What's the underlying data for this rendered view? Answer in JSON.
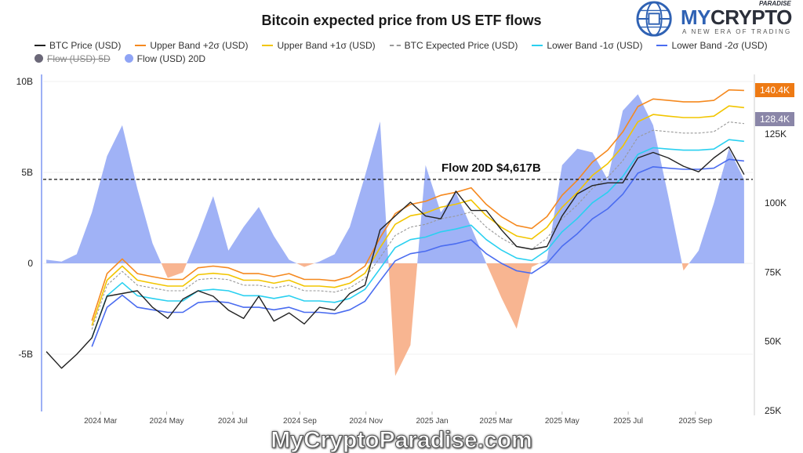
{
  "title": "Bitcoin expected price from US ETF flows",
  "logo": {
    "brand_my": "MY",
    "brand_crypto": "CRYPTO",
    "paradise": "PARADISE",
    "tagline": "A NEW ERA OF TRADING"
  },
  "watermark": "MyCryptoParadise.com",
  "legend": {
    "items": [
      {
        "label": "BTC Price (USD)",
        "color": "#222222",
        "style": "line"
      },
      {
        "label": "Upper Band +2σ (USD)",
        "color": "#f5891f",
        "style": "line"
      },
      {
        "label": "Upper Band +1σ (USD)",
        "color": "#f2c500",
        "style": "line"
      },
      {
        "label": "BTC Expected Price (USD)",
        "color": "#999999",
        "style": "dash"
      },
      {
        "label": "Lower Band -1σ (USD)",
        "color": "#2ad0f0",
        "style": "line"
      },
      {
        "label": "Lower Band -2σ (USD)",
        "color": "#4a6cf0",
        "style": "line"
      },
      {
        "label": "Flow (USD) 5D",
        "color": "#6b6878",
        "style": "dot",
        "hidden": true
      },
      {
        "label": "Flow (USD) 20D",
        "color": "#8fa4f5",
        "style": "dot"
      }
    ]
  },
  "chart_data": {
    "type": "line",
    "title": "Bitcoin expected price from US ETF flows",
    "x": [
      "2024-01-11",
      "2024-01-25",
      "2024-02-08",
      "2024-02-22",
      "2024-03-07",
      "2024-03-21",
      "2024-04-04",
      "2024-04-18",
      "2024-05-02",
      "2024-05-16",
      "2024-05-30",
      "2024-06-13",
      "2024-06-27",
      "2024-07-11",
      "2024-07-25",
      "2024-08-08",
      "2024-08-22",
      "2024-09-05",
      "2024-09-19",
      "2024-10-03",
      "2024-10-17",
      "2024-10-31",
      "2024-11-14",
      "2024-11-28",
      "2024-12-12",
      "2024-12-26",
      "2025-01-09",
      "2025-01-23",
      "2025-02-06",
      "2025-02-20",
      "2025-03-06",
      "2025-03-20",
      "2025-04-03",
      "2025-04-17",
      "2025-05-01",
      "2025-05-15",
      "2025-05-29",
      "2025-06-12",
      "2025-06-26",
      "2025-07-10",
      "2025-07-24",
      "2025-08-07",
      "2025-08-21",
      "2025-09-04",
      "2025-09-18",
      "2025-10-02",
      "2025-10-16"
    ],
    "x_ticks": [
      {
        "date": "2024-03-01",
        "label": "2024 Mar"
      },
      {
        "date": "2024-05-01",
        "label": "2024 May"
      },
      {
        "date": "2024-07-01",
        "label": "2024 Jul"
      },
      {
        "date": "2024-09-01",
        "label": "2024 Sep"
      },
      {
        "date": "2024-11-01",
        "label": "2024 Nov"
      },
      {
        "date": "2025-01-01",
        "label": "2025 Jan"
      },
      {
        "date": "2025-03-01",
        "label": "2025 Mar"
      },
      {
        "date": "2025-05-01",
        "label": "2025 May"
      },
      {
        "date": "2025-07-01",
        "label": "2025 Jul"
      },
      {
        "date": "2025-09-01",
        "label": "2025 Sep"
      }
    ],
    "x_range": [
      "2024-01-08",
      "2025-10-24"
    ],
    "y_left": {
      "unit": "USD",
      "range": [
        -8,
        10.5
      ],
      "ticks": [
        {
          "v": 10,
          "label": "10B"
        },
        {
          "v": 5,
          "label": "5B"
        },
        {
          "v": 0,
          "label": "0"
        },
        {
          "v": -5,
          "label": "-5B"
        }
      ]
    },
    "y_right": {
      "unit": "USD",
      "range": [
        25,
        146
      ],
      "ticks": [
        {
          "v": 125,
          "label": "125K"
        },
        {
          "v": 100,
          "label": "100K"
        },
        {
          "v": 75,
          "label": "75K"
        },
        {
          "v": 50,
          "label": "50K"
        },
        {
          "v": 25,
          "label": "25K"
        }
      ]
    },
    "grid": true,
    "legend_position": "top",
    "series": [
      {
        "name": "BTC Price (USD)",
        "axis": "right",
        "unit": "K",
        "color": "#222222",
        "values": [
          46,
          40,
          45,
          51,
          66,
          67,
          68,
          62,
          58,
          65,
          68,
          66,
          61,
          58,
          66,
          57,
          60,
          56,
          62,
          61,
          67,
          70,
          90,
          95,
          100,
          95,
          94,
          104,
          97,
          97,
          90,
          84,
          83,
          84,
          95,
          103,
          106,
          107,
          107,
          116,
          118,
          116,
          113,
          111,
          116,
          120,
          110
        ]
      },
      {
        "name": "Upper Band +2σ (USD)",
        "axis": "right",
        "unit": "K",
        "color": "#f5891f",
        "values": [
          null,
          null,
          null,
          57.2,
          74.2,
          79.5,
          74.2,
          73.1,
          72.1,
          72.1,
          76.3,
          76.9,
          76.3,
          74.2,
          74.2,
          73.1,
          74.2,
          72.1,
          72.1,
          71.6,
          73.1,
          76.9,
          87.2,
          95.9,
          99.2,
          100.3,
          102.5,
          103.6,
          105.2,
          99.2,
          94.8,
          91.6,
          90.5,
          94.8,
          102.5,
          107.9,
          114.5,
          118.8,
          125.4,
          134.6,
          137.3,
          136.8,
          136.3,
          136.3,
          136.8,
          140.6,
          140.4
        ]
      },
      {
        "name": "Upper Band +1σ (USD)",
        "axis": "right",
        "unit": "K",
        "color": "#f2c500",
        "values": [
          null,
          null,
          null,
          55.4,
          71.8,
          76.9,
          71.8,
          70.7,
          69.7,
          69.7,
          73.8,
          74.3,
          73.8,
          71.8,
          71.8,
          70.7,
          71.8,
          69.7,
          69.7,
          69.2,
          70.7,
          74.3,
          83.6,
          92.0,
          95.1,
          96.1,
          98.2,
          99.3,
          100.8,
          95.1,
          90.9,
          87.8,
          86.7,
          90.9,
          98.2,
          103.5,
          109.7,
          113.9,
          120.2,
          129.1,
          131.7,
          131.1,
          130.6,
          130.6,
          131.1,
          134.8,
          134.2
        ]
      },
      {
        "name": "BTC Expected Price (USD)",
        "axis": "right",
        "unit": "K",
        "color": "#999999",
        "dash": true,
        "values": [
          null,
          null,
          null,
          54,
          70,
          75,
          70,
          69,
          68,
          68,
          72,
          72.5,
          72,
          70,
          70,
          69,
          70,
          68,
          68,
          67.5,
          69,
          72.5,
          80,
          88,
          91,
          92,
          94,
          95,
          96.5,
          91,
          87,
          84,
          83,
          87,
          94,
          99,
          105,
          109,
          115,
          123.5,
          126,
          125.5,
          125,
          125,
          125.5,
          129,
          128.4
        ]
      },
      {
        "name": "Lower Band -1σ (USD)",
        "axis": "right",
        "unit": "K",
        "color": "#2ad0f0",
        "values": [
          null,
          null,
          null,
          51.0,
          66.2,
          70.9,
          66.2,
          65.2,
          64.3,
          64.3,
          68.0,
          68.5,
          68.0,
          66.2,
          66.2,
          65.2,
          66.2,
          64.3,
          64.3,
          63.8,
          65.2,
          68.5,
          76.0,
          83.6,
          86.5,
          87.4,
          89.3,
          90.3,
          91.7,
          86.5,
          82.7,
          79.8,
          78.9,
          82.7,
          89.3,
          94.1,
          99.8,
          103.6,
          109.3,
          117.3,
          119.7,
          119.2,
          118.8,
          118.8,
          119.2,
          122.6,
          122.0
        ]
      },
      {
        "name": "Lower Band -2σ (USD)",
        "axis": "right",
        "unit": "K",
        "color": "#4a6cf0",
        "values": [
          null,
          null,
          null,
          47.8,
          62.0,
          66.4,
          62.0,
          61.1,
          60.2,
          60.2,
          63.7,
          64.2,
          63.7,
          62.0,
          62.0,
          61.1,
          62.0,
          60.2,
          60.2,
          59.7,
          61.1,
          64.2,
          71.6,
          78.8,
          81.4,
          82.3,
          84.1,
          85.0,
          86.4,
          81.4,
          77.9,
          75.2,
          74.3,
          77.9,
          84.1,
          88.6,
          94.0,
          97.6,
          102.9,
          110.5,
          112.8,
          112.3,
          111.9,
          111.9,
          112.3,
          115.5,
          114.9
        ]
      },
      {
        "name": "Flow (USD) 20D",
        "axis": "left",
        "unit": "B",
        "type": "area",
        "color": "#8fa4f5",
        "negative_color": "#f7ad85",
        "values": [
          0.2,
          0.1,
          0.5,
          2.8,
          5.9,
          7.6,
          4.1,
          1.1,
          -0.8,
          -0.5,
          1.5,
          3.7,
          0.7,
          2.0,
          3.1,
          1.5,
          0.2,
          -0.2,
          0.1,
          0.5,
          2.0,
          4.8,
          7.8,
          -6.2,
          -4.5,
          5.4,
          2.8,
          3.9,
          2.0,
          0.0,
          -1.9,
          -3.6,
          -0.2,
          0.2,
          5.4,
          6.3,
          6.1,
          4.6,
          8.4,
          9.3,
          7.6,
          3.7,
          -0.4,
          0.7,
          3.3,
          6.3,
          4.6
        ]
      }
    ],
    "reference_line": {
      "axis": "left",
      "value": 4.617,
      "label": "Flow 20D $4,617B"
    },
    "last_value_badges": [
      {
        "label": "140.4K",
        "value": 140.4,
        "color": "#ee7a14"
      },
      {
        "label": "128.4K",
        "value": 128.4,
        "color": "#8a86a8"
      }
    ]
  }
}
